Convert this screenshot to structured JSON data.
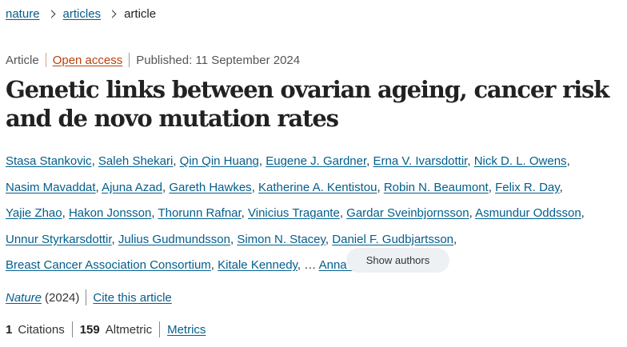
{
  "breadcrumb": {
    "items": [
      "nature",
      "articles"
    ],
    "current": "article"
  },
  "meta": {
    "type": "Article",
    "access": "Open access",
    "published": "Published: 11 September 2024"
  },
  "title": "Genetic links between ovarian ageing, cancer risk and de novo mutation rates",
  "authors": [
    "Stasa Stankovic",
    "Saleh Shekari",
    "Qin Qin Huang",
    "Eugene J. Gardner",
    "Erna V. Ivarsdottir",
    "Nick D. L. Owens",
    "Nasim Mavaddat",
    "Ajuna Azad",
    "Gareth Hawkes",
    "Katherine A. Kentistou",
    "Robin N. Beaumont",
    "Felix R. Day",
    "Yajie Zhao",
    "Hakon Jonsson",
    "Thorunn Rafnar",
    "Vinicius Tragante",
    "Gardar Sveinbjornsson",
    "Asmundur Oddsson",
    "Unnur Styrkarsdottir",
    "Julius Gudmundsson",
    "Simon N. Stacey",
    "Daniel F. Gudbjartsson",
    "Breast Cancer Association Consortium",
    "Kitale Kennedy"
  ],
  "authors_ellipsis": "…",
  "last_author": "Anna Murray",
  "show_authors_label": "Show authors",
  "journal": {
    "name": "Nature",
    "year": "(2024)",
    "cite_label": "Cite this article"
  },
  "metrics": {
    "citations_count": "1",
    "citations_label": "Citations",
    "altmetric_count": "159",
    "altmetric_label": "Altmetric",
    "metrics_link": "Metrics"
  },
  "colors": {
    "link": "#025e8d",
    "open_access": "#b7410e",
    "show_authors_bg": "#eef1f4"
  }
}
